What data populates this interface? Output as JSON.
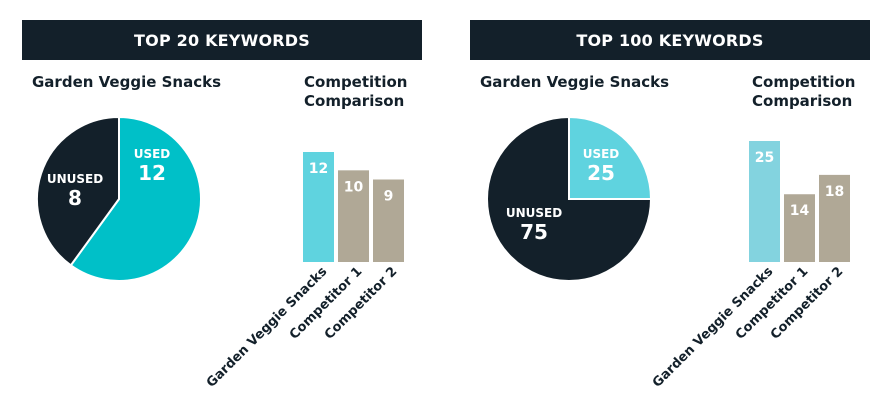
{
  "chart_data": [
    {
      "type": "pie",
      "panel_title": "TOP 20 KEYWORDS",
      "title": "Garden Veggie Snacks",
      "slices": [
        {
          "label": "USED",
          "value": 12,
          "color": "#00c0c8"
        },
        {
          "label": "UNUSED",
          "value": 8,
          "color": "#13202a"
        }
      ]
    },
    {
      "type": "bar",
      "title_line1": "Competition",
      "title_line2": "Comparison",
      "categories": [
        "Garden Veggie Snacks",
        "Competitor 1",
        "Competitor 2"
      ],
      "values": [
        12,
        10,
        9
      ],
      "colors": [
        "#5fd3df",
        "#b0a896",
        "#b0a896"
      ]
    },
    {
      "type": "pie",
      "panel_title": "TOP 100 KEYWORDS",
      "title": "Garden Veggie Snacks",
      "slices": [
        {
          "label": "USED",
          "value": 25,
          "color": "#5fd3df"
        },
        {
          "label": "UNUSED",
          "value": 75,
          "color": "#13202a"
        }
      ]
    },
    {
      "type": "bar",
      "title_line1": "Competition",
      "title_line2": "Comparison",
      "categories": [
        "Garden Veggie Snacks",
        "Competitor 1",
        "Competitor 2"
      ],
      "values": [
        25,
        14,
        18
      ],
      "colors": [
        "#83d3df",
        "#b0a896",
        "#b0a896"
      ]
    }
  ]
}
